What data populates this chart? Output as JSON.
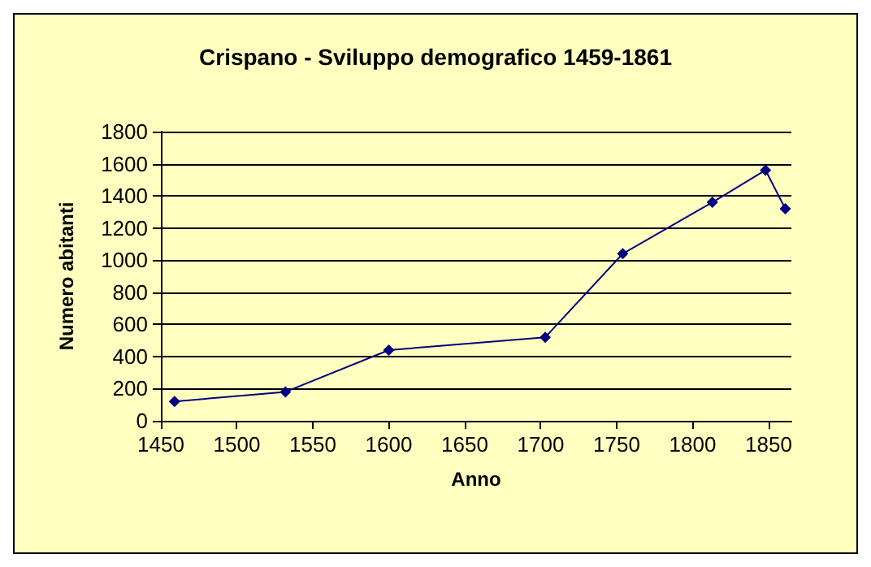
{
  "chart_data": {
    "type": "line",
    "title": "Crispano - Sviluppo demografico 1459-1861",
    "xlabel": "Anno",
    "ylabel": "Numero abitanti",
    "x": [
      1459,
      1532,
      1600,
      1703,
      1754,
      1813,
      1848,
      1861
    ],
    "series": [
      {
        "color": "#000080",
        "values": [
          120,
          180,
          440,
          520,
          1040,
          1360,
          1560,
          1320
        ]
      }
    ],
    "xlim": [
      1450,
      1865
    ],
    "xticks": [
      1450,
      1500,
      1550,
      1600,
      1650,
      1700,
      1750,
      1800,
      1850
    ],
    "ylim": [
      0,
      1800
    ],
    "yticks": [
      0,
      200,
      400,
      600,
      800,
      1000,
      1200,
      1400,
      1600,
      1800
    ],
    "grid": "y",
    "marker": "diamond",
    "line_style": "solid"
  }
}
